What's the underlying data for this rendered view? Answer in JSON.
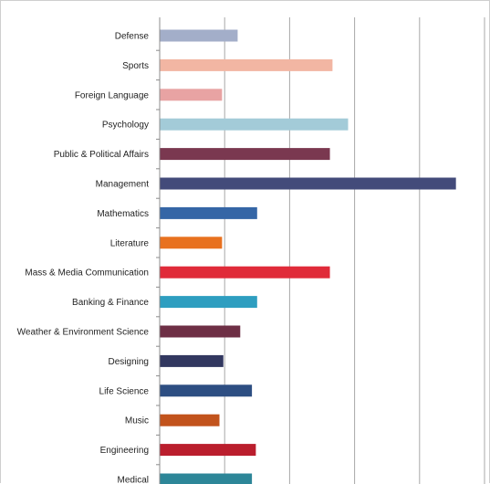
{
  "chart_data": {
    "type": "bar",
    "orientation": "horizontal",
    "title": "",
    "xlabel": "",
    "ylabel": "",
    "grid": true,
    "legend": "none",
    "xlim": [
      0,
      25
    ],
    "categories": [
      "Defense",
      "Sports",
      "Foreign Language",
      "Psychology",
      "Public & Political Affairs",
      "Management",
      "Mathematics",
      "Literature",
      "Mass & Media Communication",
      "Banking & Finance",
      "Weather & Environment Science",
      "Designing",
      "Life Science",
      "Music",
      "Engineering",
      "Medical"
    ],
    "values": [
      6,
      13.3,
      4.8,
      14.5,
      13.1,
      22.8,
      7.5,
      4.8,
      13.1,
      7.5,
      6.2,
      4.9,
      7.1,
      4.6,
      7.4,
      7.1
    ],
    "colors": [
      "#A3AEC9",
      "#F2B6A3",
      "#E8A3A3",
      "#A3CBD8",
      "#7A3850",
      "#434B7A",
      "#3566A6",
      "#E8711F",
      "#E02B39",
      "#2E9EC0",
      "#6E2F45",
      "#323860",
      "#2D4E82",
      "#C2531C",
      "#BA1E2D",
      "#2D8698"
    ]
  }
}
